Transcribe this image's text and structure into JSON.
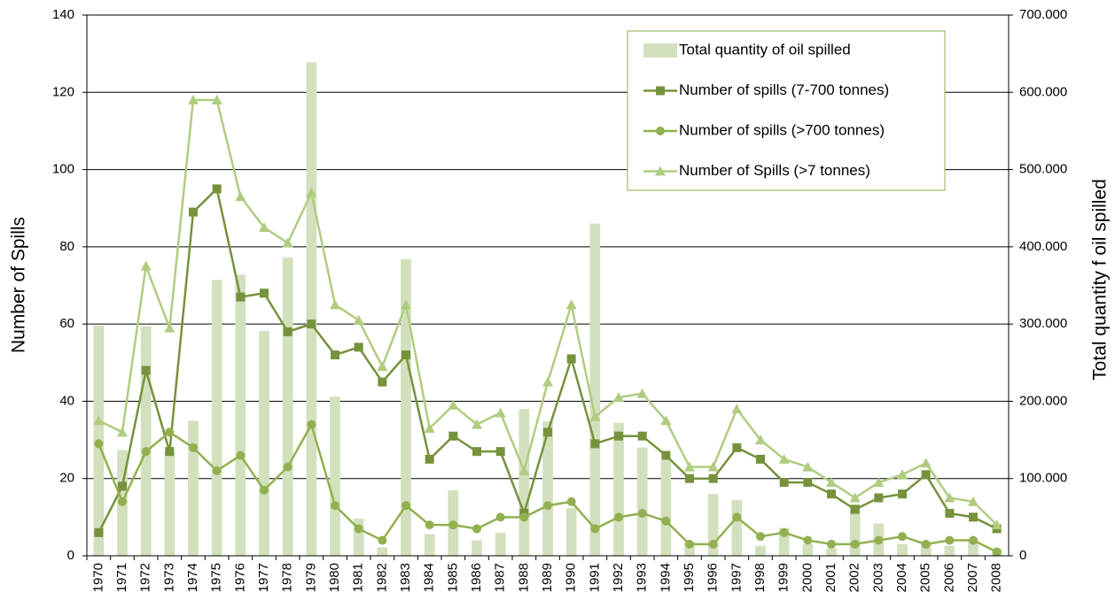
{
  "chart_data": {
    "type": "combo",
    "ylabel": "Number of Spills",
    "y2label": "Total quantity f oil spilled",
    "categories": [
      "1970",
      "1971",
      "1972",
      "1973",
      "1974",
      "1975",
      "1976",
      "1977",
      "1978",
      "1979",
      "1980",
      "1981",
      "1982",
      "1983",
      "1984",
      "1985",
      "1986",
      "1987",
      "1988",
      "1989",
      "1990",
      "1991",
      "1992",
      "1993",
      "1994",
      "1995",
      "1996",
      "1997",
      "1998",
      "1999",
      "2000",
      "2001",
      "2002",
      "2003",
      "2004",
      "2005",
      "2006",
      "2007",
      "2008"
    ],
    "series": [
      {
        "name": "Total quantity of oil spilled",
        "type": "bar",
        "axis": "y2",
        "color": "#d3e0bd",
        "values": [
          298000,
          137000,
          297000,
          135000,
          175000,
          357000,
          364000,
          291000,
          386000,
          639000,
          206000,
          48000,
          11000,
          384000,
          28000,
          85000,
          20000,
          30000,
          190000,
          174000,
          62000,
          430000,
          172000,
          140000,
          124000,
          18000,
          80000,
          72000,
          13000,
          36000,
          15000,
          10000,
          67000,
          42000,
          15000,
          18000,
          13000,
          20000,
          9000
        ]
      },
      {
        "name": "Number of spills (7-700 tonnes)",
        "type": "line",
        "marker": "square",
        "color": "#76923c",
        "values": [
          6,
          18,
          48,
          27,
          89,
          95,
          67,
          68,
          58,
          60,
          52,
          54,
          45,
          52,
          25,
          31,
          27,
          27,
          11,
          32,
          51,
          29,
          31,
          31,
          26,
          20,
          20,
          28,
          25,
          19,
          19,
          16,
          12,
          15,
          16,
          21,
          11,
          10,
          7
        ]
      },
      {
        "name": "Number of spills (>700 tonnes)",
        "type": "line",
        "marker": "circle",
        "color": "#92b050",
        "values": [
          29,
          14,
          27,
          32,
          28,
          22,
          26,
          17,
          23,
          34,
          13,
          7,
          4,
          13,
          8,
          8,
          7,
          10,
          10,
          13,
          14,
          7,
          10,
          11,
          9,
          3,
          3,
          10,
          5,
          6,
          4,
          3,
          3,
          4,
          5,
          3,
          4,
          4,
          1
        ]
      },
      {
        "name": "Number of Spills (>7 tonnes)",
        "type": "line",
        "marker": "triangle",
        "color": "#b0cc80",
        "values": [
          35,
          32,
          75,
          59,
          118,
          118,
          93,
          85,
          81,
          94,
          65,
          61,
          49,
          65,
          33,
          39,
          34,
          37,
          22,
          45,
          65,
          36,
          41,
          42,
          35,
          23,
          23,
          38,
          30,
          25,
          23,
          19,
          15,
          19,
          21,
          24,
          15,
          14,
          8
        ]
      }
    ],
    "ylim": [
      0,
      140
    ],
    "yticks": [
      0,
      20,
      40,
      60,
      80,
      100,
      120,
      140
    ],
    "y2lim": [
      0,
      700000
    ],
    "y2ticks": [
      0,
      {
        "value": 100000,
        "label": "100.000"
      },
      {
        "value": 200000,
        "label": "200.000"
      },
      {
        "value": 300000,
        "label": "300.000"
      },
      {
        "value": 400000,
        "label": "400.000"
      },
      {
        "value": 500000,
        "label": "500.000"
      },
      {
        "value": 600000,
        "label": "600.000"
      },
      {
        "value": 700000,
        "label": "700.000"
      }
    ],
    "grid": true,
    "legend": "top-right"
  }
}
